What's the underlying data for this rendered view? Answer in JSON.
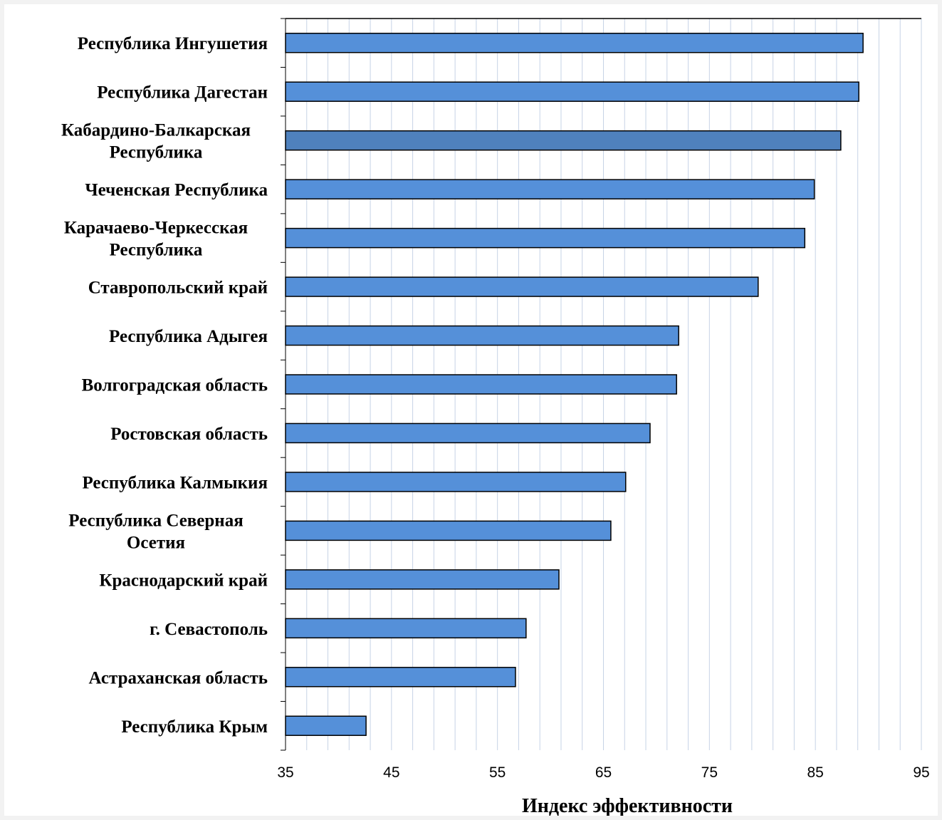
{
  "chart_data": {
    "type": "bar",
    "orientation": "horizontal",
    "categories": [
      "Республика Ингушетия",
      "Республика Дагестан",
      "Кабардино-Балкарская Республика",
      "Чеченская Республика",
      "Карачаево-Черкесская Республика",
      "Ставропольский край",
      "Республика Адыгея",
      "Волгоградская область",
      "Ростовская область",
      "Республика Калмыкия",
      "Республика Северная Осетия",
      "Краснодарский край",
      "г. Севастополь",
      "Астраханская область",
      "Республика Крым"
    ],
    "category_lines": [
      [
        "Республика Ингушетия"
      ],
      [
        "Республика Дагестан"
      ],
      [
        "Кабардино-Балкарская",
        "Республика"
      ],
      [
        "Чеченская Республика"
      ],
      [
        "Карачаево-Черкесская",
        "Республика"
      ],
      [
        "Ставропольский край"
      ],
      [
        "Республика Адыгея"
      ],
      [
        "Волгоградская область"
      ],
      [
        "Ростовская область"
      ],
      [
        "Республика Калмыкия"
      ],
      [
        "Республика Северная",
        "Осетия"
      ],
      [
        "Краснодарский край"
      ],
      [
        "г. Севастополь"
      ],
      [
        "Астраханская область"
      ],
      [
        "Республика Крым"
      ]
    ],
    "values": [
      89.5,
      89.1,
      87.4,
      84.9,
      84.0,
      79.6,
      72.1,
      71.9,
      69.4,
      67.1,
      65.7,
      60.8,
      57.7,
      56.7,
      42.6
    ],
    "highlight_index": 2,
    "colors": {
      "bar": "#5590d9",
      "highlight": "#4f81bd",
      "edge": "#000000",
      "grid": "#c6d3e6"
    },
    "xlim": [
      35,
      95
    ],
    "xticks": [
      35,
      45,
      55,
      65,
      75,
      85,
      95
    ],
    "minor_grid_step": 2,
    "xlabel": "Индекс эффективности",
    "ylabel": "",
    "title": "",
    "grid": true,
    "legend": false
  }
}
